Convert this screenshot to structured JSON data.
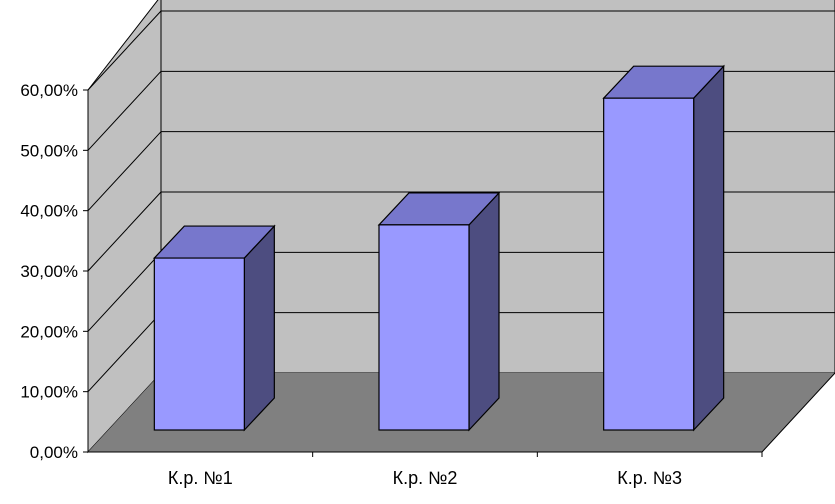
{
  "chart_data": {
    "type": "bar",
    "categories": [
      "К.р. №1",
      "К.р. №2",
      "К.р. №3"
    ],
    "values": [
      28.5,
      34,
      55
    ],
    "y_ticks": [
      "0,00%",
      "10,00%",
      "20,00%",
      "30,00%",
      "40,00%",
      "50,00%",
      "60,00%"
    ],
    "ylim": [
      0,
      60
    ],
    "grid": true,
    "legend": "none",
    "style": "3d-column",
    "colors": {
      "bar_front": "#9999ff",
      "bar_top": "#7777cc",
      "bar_side": "#4d4d80",
      "back_wall": "#c0c0c0",
      "side_wall": "#c0c0c0",
      "floor": "#808080",
      "gridline": "#000000"
    }
  }
}
